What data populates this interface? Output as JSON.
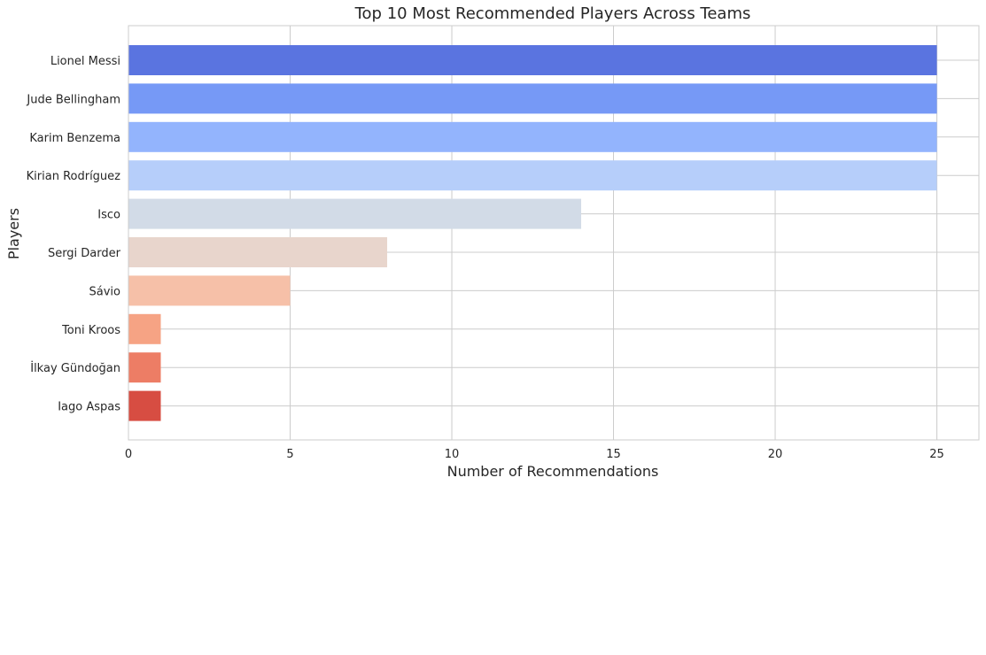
{
  "chart_data": {
    "type": "bar",
    "orientation": "horizontal",
    "title": "Top 10 Most Recommended Players Across Teams",
    "xlabel": "Number of Recommendations",
    "ylabel": "Players",
    "xlim": [
      0,
      26.3
    ],
    "xticks": [
      0,
      5,
      10,
      15,
      20,
      25
    ],
    "grid": true,
    "categories": [
      "Lionel Messi",
      "Jude Bellingham",
      "Karim Benzema",
      "Kirian Rodríguez",
      "Isco",
      "Sergi Darder",
      "Sávio",
      "Toni Kroos",
      "İlkay Gündoğan",
      "Iago Aspas"
    ],
    "values": [
      25,
      25,
      25,
      25,
      14,
      8,
      5,
      1,
      1,
      1
    ],
    "colors": [
      "#5a74e0",
      "#7699f6",
      "#93b4fd",
      "#b6cefa",
      "#d2dbe7",
      "#e8d5cc",
      "#f6c0a8",
      "#f6a384",
      "#ed7d65",
      "#d74d42"
    ]
  }
}
